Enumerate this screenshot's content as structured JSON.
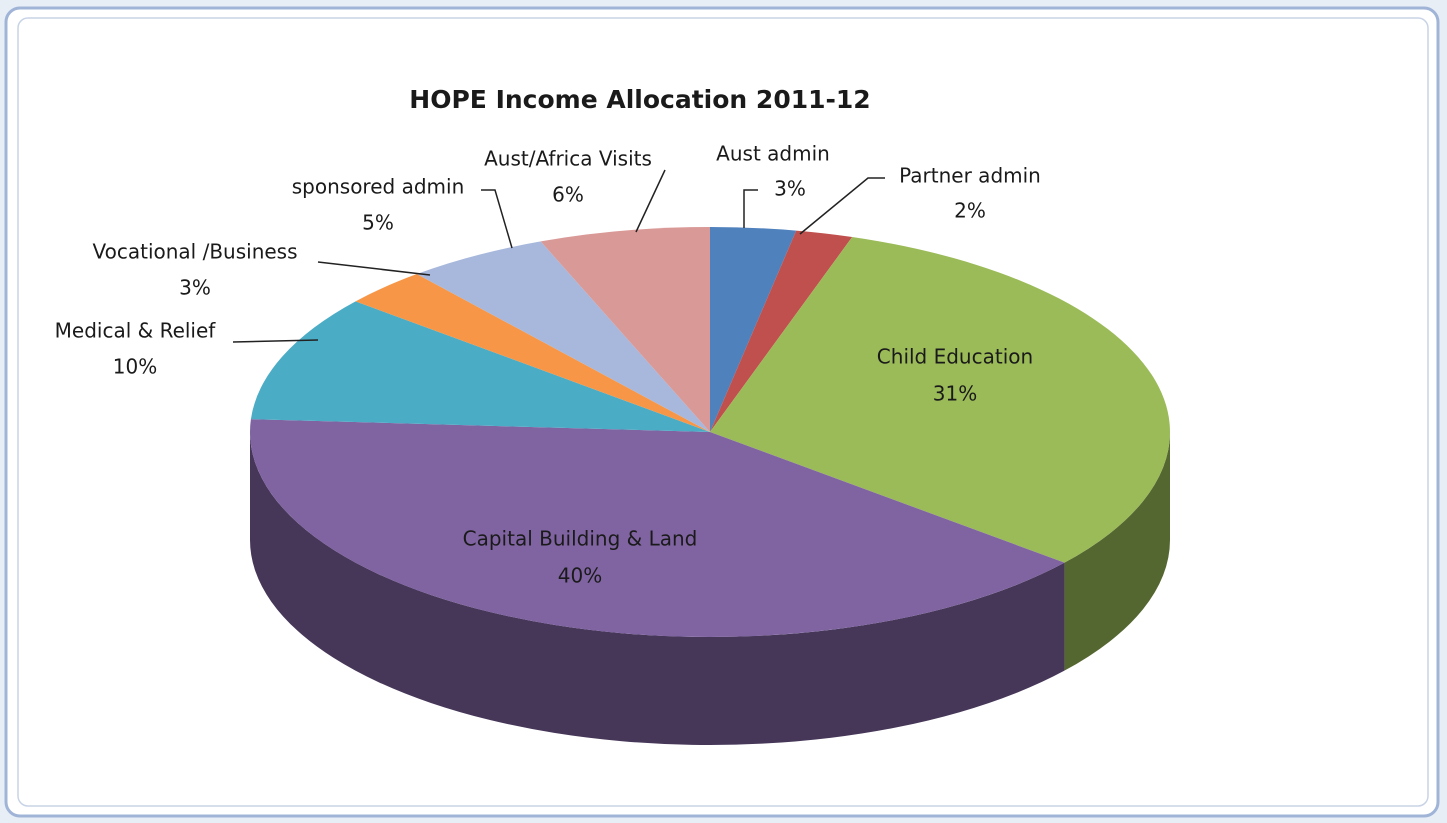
{
  "chart_data": {
    "type": "pie",
    "title": "HOPE Income Allocation 2011-12",
    "categories": [
      "Aust admin",
      "Partner admin",
      "Child Education",
      "Capital Building & Land",
      "Medical & Relief",
      "Vocational /Business",
      "sponsored admin",
      "Aust/Africa Visits"
    ],
    "values": [
      3,
      2,
      31,
      40,
      10,
      3,
      5,
      6
    ],
    "value_labels": [
      "3%",
      "2%",
      "31%",
      "40%",
      "10%",
      "3%",
      "5%",
      "6%"
    ],
    "colors": [
      "#4f81bd",
      "#c0504d",
      "#9bbb59",
      "#8064a2",
      "#4bacc6",
      "#f79646",
      "#a7b8dc",
      "#d99997"
    ]
  }
}
